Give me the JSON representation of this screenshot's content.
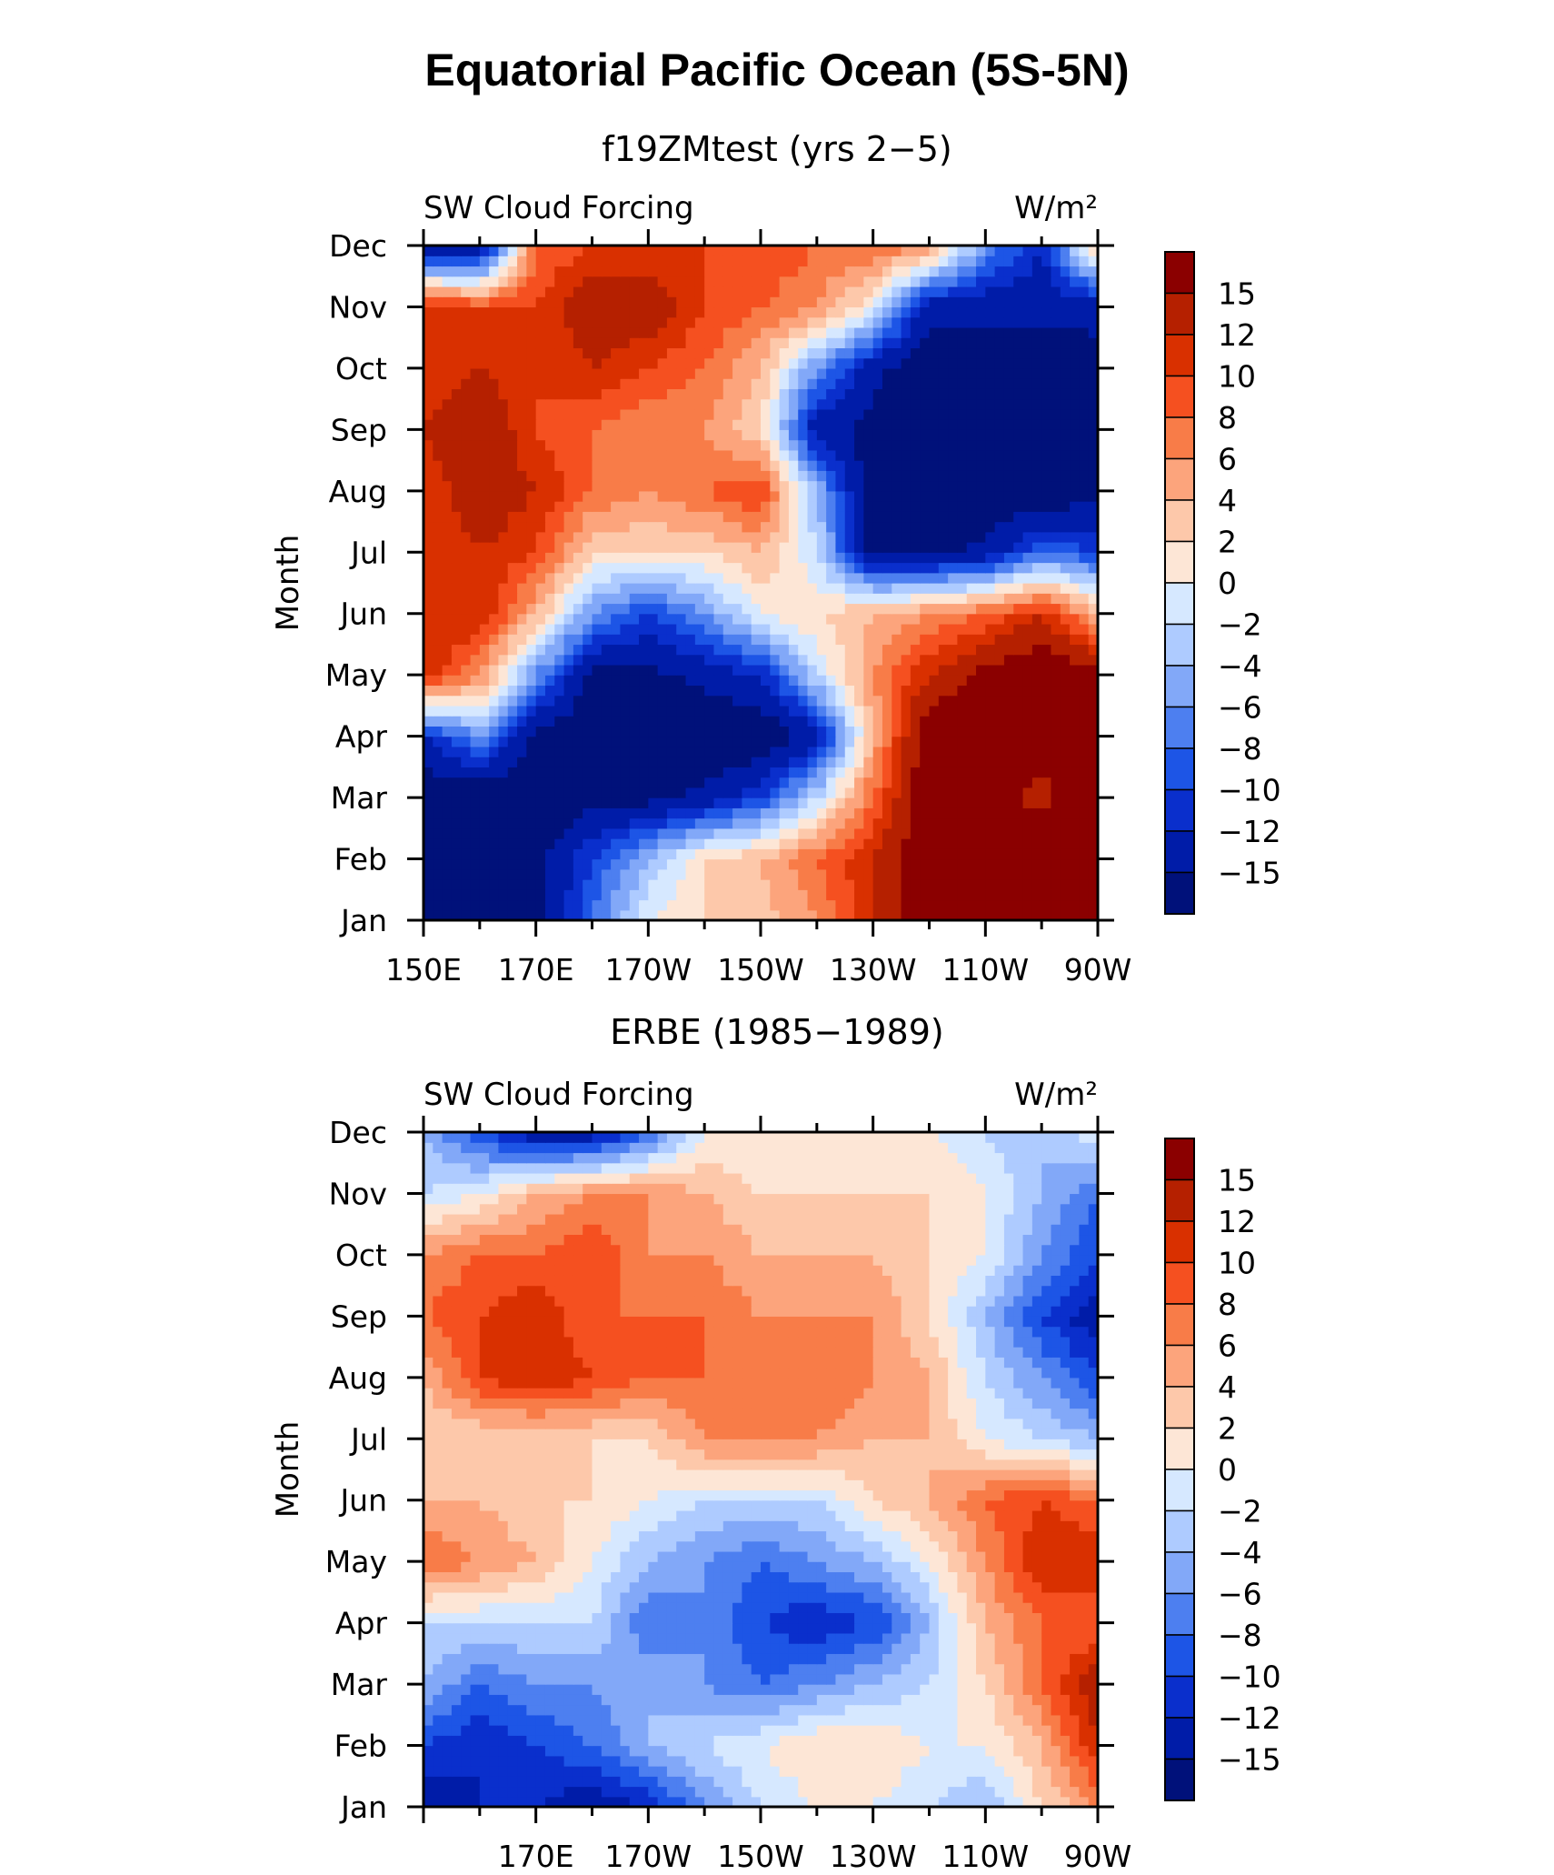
{
  "title": "Equatorial Pacific Ocean (5S-5N)",
  "colorbar": {
    "levels": [
      "15",
      "12",
      "10",
      "8",
      "6",
      "4",
      "2",
      "0",
      "−2",
      "−4",
      "−6",
      "−8",
      "−10",
      "−12",
      "−15"
    ],
    "colors": [
      "#8b0000",
      "#b52000",
      "#d93000",
      "#f55020",
      "#f87c48",
      "#fca47c",
      "#fdc8aa",
      "#fde6d6",
      "#d6e8ff",
      "#aecbff",
      "#82a8f8",
      "#4d7ff0",
      "#1d55e6",
      "#0a2fcc",
      "#001ca8",
      "#00117a"
    ]
  },
  "chart_data": [
    {
      "type": "heatmap",
      "title": "f19ZMtest (yrs 2−5)",
      "variable": "SW Cloud Forcing",
      "units": "W/m²",
      "ylabel": "Month",
      "x_ticks": [
        "150E",
        "170E",
        "170W",
        "150W",
        "130W",
        "110W",
        "90W"
      ],
      "y_ticks": [
        "Jan",
        "Feb",
        "Mar",
        "Apr",
        "May",
        "Jun",
        "Jul",
        "Aug",
        "Sep",
        "Oct",
        "Nov",
        "Dec"
      ],
      "x": [
        150,
        160,
        170,
        180,
        190,
        200,
        210,
        220,
        230,
        240,
        250,
        260,
        270
      ],
      "z": [
        [
          -18,
          -18,
          -16,
          -8,
          0,
          2,
          3,
          6,
          12,
          18,
          18,
          18,
          18
        ],
        [
          -18,
          -18,
          -16,
          -10,
          -4,
          2,
          4,
          8,
          12,
          18,
          18,
          18,
          18
        ],
        [
          -18,
          -18,
          -18,
          -16,
          -16,
          -14,
          -10,
          -2,
          8,
          18,
          16,
          14,
          18
        ],
        [
          -12,
          -6,
          -16,
          -18,
          -18,
          -18,
          -18,
          -14,
          4,
          18,
          18,
          16,
          18
        ],
        [
          12,
          6,
          -6,
          -16,
          -16,
          -14,
          -12,
          -2,
          6,
          12,
          16,
          18,
          16
        ],
        [
          12,
          12,
          4,
          -6,
          -10,
          -6,
          0,
          2,
          4,
          6,
          8,
          12,
          4
        ],
        [
          10,
          12,
          10,
          2,
          2,
          2,
          4,
          -2,
          -16,
          -16,
          -14,
          -8,
          -10
        ],
        [
          10,
          14,
          12,
          8,
          6,
          8,
          10,
          -4,
          -18,
          -18,
          -18,
          -18,
          -16
        ],
        [
          12,
          15,
          10,
          8,
          6,
          6,
          2,
          -14,
          -16,
          -18,
          -18,
          -18,
          -18
        ],
        [
          10,
          12,
          10,
          12,
          10,
          8,
          4,
          -6,
          -14,
          -18,
          -18,
          -18,
          -16
        ],
        [
          12,
          10,
          10,
          14,
          14,
          10,
          8,
          6,
          0,
          -14,
          -14,
          -14,
          -14
        ],
        [
          -16,
          -16,
          8,
          10,
          10,
          10,
          10,
          8,
          8,
          6,
          -6,
          -12,
          4
        ]
      ]
    },
    {
      "type": "heatmap",
      "title": "ERBE (1985−1989)",
      "variable": "SW Cloud Forcing",
      "units": "W/m²",
      "ylabel": "Month",
      "x_ticks": [
        "170E",
        "170W",
        "150W",
        "130W",
        "110W",
        "90W"
      ],
      "y_ticks": [
        "Jan",
        "Feb",
        "Mar",
        "Apr",
        "May",
        "Jun",
        "Jul",
        "Aug",
        "Sep",
        "Oct",
        "Nov",
        "Dec"
      ],
      "x": [
        150,
        160,
        170,
        180,
        190,
        200,
        210,
        220,
        230,
        240,
        250,
        260,
        270
      ],
      "z": [
        [
          -14,
          -12,
          -12,
          -14,
          -12,
          -6,
          -2,
          0,
          0,
          -2,
          -4,
          2,
          6
        ],
        [
          -10,
          -12,
          -10,
          -8,
          -4,
          -2,
          0,
          2,
          2,
          0,
          0,
          4,
          12
        ],
        [
          -4,
          -8,
          -6,
          -6,
          -4,
          -6,
          -8,
          -6,
          -4,
          -2,
          2,
          8,
          14
        ],
        [
          -2,
          -2,
          -2,
          -2,
          -8,
          -6,
          -10,
          -12,
          -10,
          -4,
          4,
          8,
          8
        ],
        [
          8,
          6,
          4,
          0,
          -4,
          -6,
          -8,
          -6,
          -4,
          0,
          6,
          12,
          12
        ],
        [
          4,
          4,
          2,
          2,
          0,
          -2,
          -2,
          -2,
          2,
          4,
          8,
          10,
          8
        ],
        [
          2,
          2,
          2,
          2,
          2,
          6,
          6,
          6,
          4,
          4,
          0,
          -2,
          -4
        ],
        [
          4,
          10,
          12,
          10,
          8,
          8,
          8,
          8,
          6,
          4,
          -2,
          -6,
          -10
        ],
        [
          8,
          10,
          12,
          8,
          8,
          8,
          6,
          6,
          6,
          2,
          -4,
          -10,
          -14
        ],
        [
          6,
          8,
          8,
          10,
          6,
          6,
          4,
          4,
          4,
          2,
          0,
          -6,
          -10
        ],
        [
          -2,
          0,
          4,
          6,
          6,
          4,
          2,
          2,
          2,
          2,
          0,
          -4,
          -8
        ],
        [
          -4,
          -10,
          -14,
          -14,
          -8,
          0,
          0,
          0,
          0,
          0,
          -2,
          -4,
          0
        ]
      ]
    }
  ]
}
